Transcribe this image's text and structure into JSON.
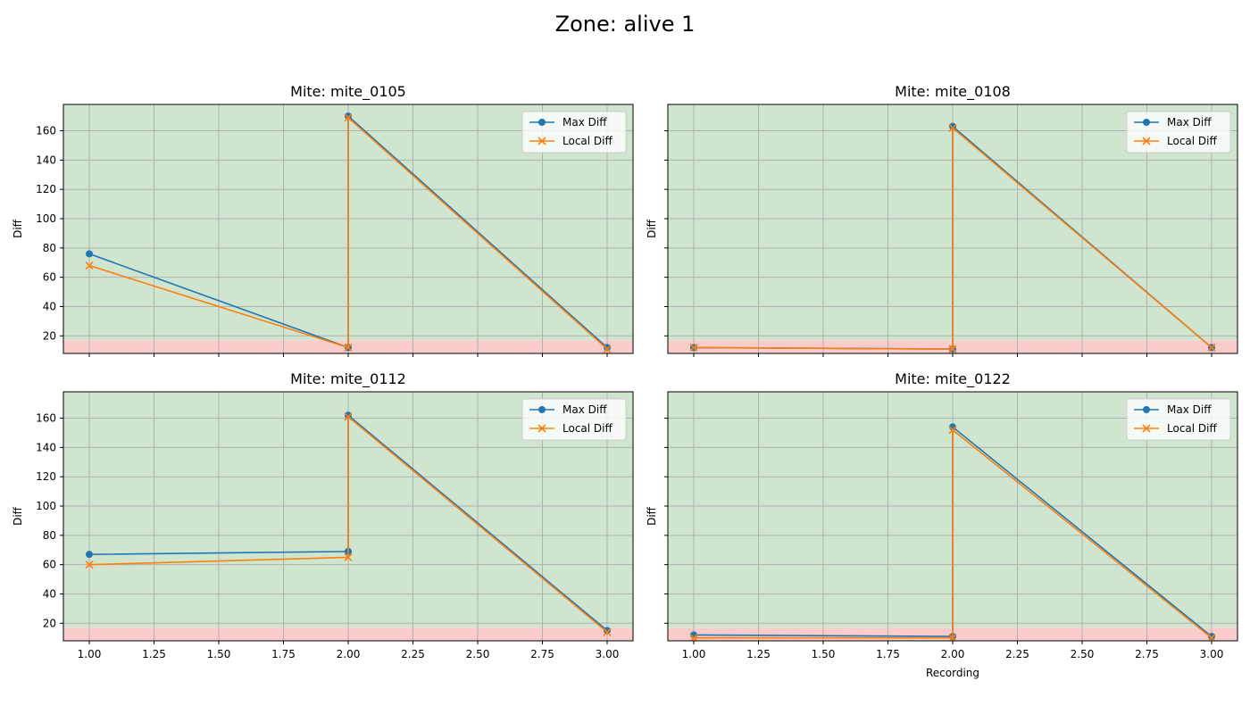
{
  "figure": {
    "suptitle": "Zone: alive 1"
  },
  "colors": {
    "max_diff": "#1f77b4",
    "local_diff": "#ff7f0e",
    "alive_band": "#cfe5cf",
    "dead_band": "#fbcccc",
    "grid": "#b0b0b0"
  },
  "chart_data": [
    {
      "type": "line",
      "title": "Mite: mite_0105",
      "xlabel": "",
      "ylabel": "Diff",
      "xlim": [
        0.9,
        3.1
      ],
      "ylim": [
        8,
        178
      ],
      "xticks": [
        "1.00",
        "1.25",
        "1.50",
        "1.75",
        "2.00",
        "2.25",
        "2.50",
        "2.75",
        "3.00"
      ],
      "xtick_values": [
        1.0,
        1.25,
        1.5,
        1.75,
        2.0,
        2.25,
        2.5,
        2.75,
        3.0
      ],
      "yticks": [
        "20",
        "40",
        "60",
        "80",
        "100",
        "120",
        "140",
        "160"
      ],
      "ytick_values": [
        20,
        40,
        60,
        80,
        100,
        120,
        140,
        160
      ],
      "show_xtick_labels": false,
      "show_ytick_labels": true,
      "grid": true,
      "legend": "upper-right",
      "bands": [
        {
          "from": 8,
          "to": 17,
          "kind": "dead"
        },
        {
          "from": 17,
          "to": 178,
          "kind": "alive"
        }
      ],
      "series": [
        {
          "name": "Max Diff",
          "marker": "circle",
          "x": [
            1,
            2,
            2,
            3
          ],
          "y": [
            76,
            12,
            170,
            12
          ]
        },
        {
          "name": "Local Diff",
          "marker": "x",
          "x": [
            1,
            2,
            2,
            3
          ],
          "y": [
            68,
            12,
            169,
            11
          ]
        }
      ]
    },
    {
      "type": "line",
      "title": "Mite: mite_0108",
      "xlabel": "",
      "ylabel": "Diff",
      "xlim": [
        0.9,
        3.1
      ],
      "ylim": [
        8,
        178
      ],
      "xticks": [
        "1.00",
        "1.25",
        "1.50",
        "1.75",
        "2.00",
        "2.25",
        "2.50",
        "2.75",
        "3.00"
      ],
      "xtick_values": [
        1.0,
        1.25,
        1.5,
        1.75,
        2.0,
        2.25,
        2.5,
        2.75,
        3.0
      ],
      "yticks": [
        "20",
        "40",
        "60",
        "80",
        "100",
        "120",
        "140",
        "160"
      ],
      "ytick_values": [
        20,
        40,
        60,
        80,
        100,
        120,
        140,
        160
      ],
      "show_xtick_labels": false,
      "show_ytick_labels": false,
      "grid": true,
      "legend": "upper-right",
      "bands": [
        {
          "from": 8,
          "to": 17,
          "kind": "dead"
        },
        {
          "from": 17,
          "to": 178,
          "kind": "alive"
        }
      ],
      "series": [
        {
          "name": "Max Diff",
          "marker": "circle",
          "x": [
            1,
            2,
            2,
            3
          ],
          "y": [
            12,
            11,
            163,
            12
          ]
        },
        {
          "name": "Local Diff",
          "marker": "x",
          "x": [
            1,
            2,
            2,
            3
          ],
          "y": [
            12,
            11,
            162,
            12
          ]
        }
      ]
    },
    {
      "type": "line",
      "title": "Mite: mite_0112",
      "xlabel": "",
      "ylabel": "Diff",
      "xlim": [
        0.9,
        3.1
      ],
      "ylim": [
        8,
        178
      ],
      "xticks": [
        "1.00",
        "1.25",
        "1.50",
        "1.75",
        "2.00",
        "2.25",
        "2.50",
        "2.75",
        "3.00"
      ],
      "xtick_values": [
        1.0,
        1.25,
        1.5,
        1.75,
        2.0,
        2.25,
        2.5,
        2.75,
        3.0
      ],
      "yticks": [
        "20",
        "40",
        "60",
        "80",
        "100",
        "120",
        "140",
        "160"
      ],
      "ytick_values": [
        20,
        40,
        60,
        80,
        100,
        120,
        140,
        160
      ],
      "show_xtick_labels": true,
      "show_ytick_labels": true,
      "grid": true,
      "legend": "upper-right",
      "bands": [
        {
          "from": 8,
          "to": 17,
          "kind": "dead"
        },
        {
          "from": 17,
          "to": 178,
          "kind": "alive"
        }
      ],
      "series": [
        {
          "name": "Max Diff",
          "marker": "circle",
          "x": [
            1,
            2,
            2,
            3
          ],
          "y": [
            67,
            69,
            162,
            15
          ]
        },
        {
          "name": "Local Diff",
          "marker": "x",
          "x": [
            1,
            2,
            2,
            3
          ],
          "y": [
            60,
            65,
            161,
            14
          ]
        }
      ]
    },
    {
      "type": "line",
      "title": "Mite: mite_0122",
      "xlabel": "Recording",
      "ylabel": "Diff",
      "xlim": [
        0.9,
        3.1
      ],
      "ylim": [
        8,
        178
      ],
      "xticks": [
        "1.00",
        "1.25",
        "1.50",
        "1.75",
        "2.00",
        "2.25",
        "2.50",
        "2.75",
        "3.00"
      ],
      "xtick_values": [
        1.0,
        1.25,
        1.5,
        1.75,
        2.0,
        2.25,
        2.5,
        2.75,
        3.0
      ],
      "yticks": [
        "20",
        "40",
        "60",
        "80",
        "100",
        "120",
        "140",
        "160"
      ],
      "ytick_values": [
        20,
        40,
        60,
        80,
        100,
        120,
        140,
        160
      ],
      "show_xtick_labels": true,
      "show_ytick_labels": false,
      "grid": true,
      "legend": "upper-right",
      "bands": [
        {
          "from": 8,
          "to": 17,
          "kind": "dead"
        },
        {
          "from": 17,
          "to": 178,
          "kind": "alive"
        }
      ],
      "series": [
        {
          "name": "Max Diff",
          "marker": "circle",
          "x": [
            1,
            2,
            2,
            3
          ],
          "y": [
            12,
            11,
            154,
            11
          ]
        },
        {
          "name": "Local Diff",
          "marker": "x",
          "x": [
            1,
            2,
            2,
            3
          ],
          "y": [
            10,
            10,
            152,
            10
          ]
        }
      ]
    }
  ]
}
